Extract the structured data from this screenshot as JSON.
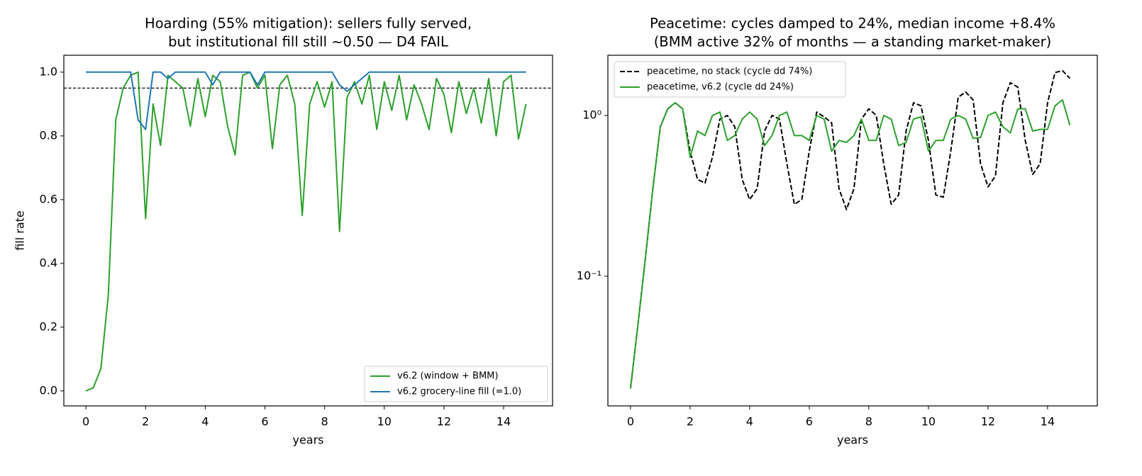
{
  "chart_data": [
    {
      "type": "line",
      "title": [
        "Hoarding (55% mitigation): sellers fully served,",
        "but institutional fill still ~0.50 — D4 FAIL"
      ],
      "xlabel": "years",
      "ylabel": "fill rate",
      "x": [
        0,
        0.25,
        0.5,
        0.75,
        1,
        1.25,
        1.5,
        1.75,
        2,
        2.25,
        2.5,
        2.75,
        3,
        3.25,
        3.5,
        3.75,
        4,
        4.25,
        4.5,
        4.75,
        5,
        5.25,
        5.5,
        5.75,
        6,
        6.25,
        6.5,
        6.75,
        7,
        7.25,
        7.5,
        7.75,
        8,
        8.25,
        8.5,
        8.75,
        9,
        9.25,
        9.5,
        9.75,
        10,
        10.25,
        10.5,
        10.75,
        11,
        11.25,
        11.5,
        11.75,
        12,
        12.25,
        12.5,
        12.75,
        13,
        13.25,
        13.5,
        13.75,
        14,
        14.25,
        14.5,
        14.75
      ],
      "series": [
        {
          "name": "v6.2 (window + BMM)",
          "color": "#2ca02c",
          "style": "solid",
          "values": [
            0,
            0.01,
            0.07,
            0.3,
            0.85,
            0.95,
            0.99,
            1.0,
            0.54,
            0.9,
            0.77,
            0.99,
            0.97,
            0.95,
            0.83,
            0.98,
            0.86,
            0.99,
            0.97,
            0.83,
            0.74,
            0.99,
            1.0,
            0.95,
            0.99,
            0.76,
            0.96,
            0.99,
            0.9,
            0.55,
            0.9,
            0.97,
            0.89,
            0.97,
            0.5,
            0.92,
            0.97,
            0.9,
            0.99,
            0.82,
            0.97,
            0.88,
            0.99,
            0.85,
            0.96,
            0.9,
            0.82,
            0.98,
            0.93,
            0.81,
            0.97,
            0.87,
            0.95,
            0.84,
            0.98,
            0.8,
            0.97,
            0.99,
            0.79,
            0.9
          ]
        },
        {
          "name": "v6.2 grocery-line fill (=1.0)",
          "color": "#1f77b4",
          "style": "solid",
          "values": [
            1,
            1,
            1,
            1,
            1,
            1,
            1,
            0.85,
            0.82,
            1,
            1,
            0.98,
            1,
            1,
            1,
            1,
            1,
            0.96,
            1,
            1,
            1,
            1,
            1,
            0.96,
            1,
            1,
            1,
            1,
            1,
            1,
            1,
            1,
            1,
            1,
            0.96,
            0.94,
            0.96,
            0.98,
            1,
            1,
            1,
            1,
            1,
            1,
            1,
            1,
            1,
            1,
            1,
            1,
            1,
            1,
            1,
            1,
            1,
            1,
            1,
            1,
            1,
            1
          ]
        }
      ],
      "reference_line": {
        "value": 0.95,
        "color": "#000000",
        "style": "dashed"
      },
      "xlim": [
        -0.74,
        15.64
      ],
      "xticks": [
        0,
        2,
        4,
        6,
        8,
        10,
        12,
        14
      ],
      "ylim": [
        -0.047,
        1.053
      ],
      "yticks": [
        {
          "value": 0,
          "label": "0.0"
        },
        0.2,
        0.4,
        0.6,
        0.8,
        {
          "value": 1,
          "label": "1.0"
        }
      ],
      "log_y": false,
      "legend": "lower right"
    },
    {
      "type": "line",
      "title": [
        "Peacetime: cycles damped to 24%, median income +8.4%",
        "(BMM active 32% of months — a standing market-maker)"
      ],
      "xlabel": "years",
      "x": [
        0,
        0.25,
        0.5,
        0.75,
        1,
        1.25,
        1.5,
        1.75,
        2,
        2.25,
        2.5,
        2.75,
        3,
        3.25,
        3.5,
        3.75,
        4,
        4.25,
        4.5,
        4.75,
        5,
        5.25,
        5.5,
        5.75,
        6,
        6.25,
        6.5,
        6.75,
        7,
        7.25,
        7.5,
        7.75,
        8,
        8.25,
        8.5,
        8.75,
        9,
        9.25,
        9.5,
        9.75,
        10,
        10.25,
        10.5,
        10.75,
        11,
        11.25,
        11.5,
        11.75,
        12,
        12.25,
        12.5,
        12.75,
        13,
        13.25,
        13.5,
        13.75,
        14,
        14.25,
        14.5,
        14.75
      ],
      "series": [
        {
          "name": "peacetime, no stack (cycle dd 74%)",
          "color": "#000000",
          "style": "dashed",
          "values": [
            0.02,
            0.05,
            0.13,
            0.35,
            0.85,
            1.1,
            1.2,
            1.1,
            0.6,
            0.4,
            0.38,
            0.55,
            0.95,
            1.0,
            0.85,
            0.4,
            0.3,
            0.35,
            0.8,
            1.0,
            0.95,
            0.5,
            0.28,
            0.3,
            0.6,
            1.05,
            0.98,
            0.9,
            0.35,
            0.26,
            0.35,
            0.95,
            1.1,
            1.0,
            0.5,
            0.28,
            0.32,
            0.8,
            1.2,
            1.15,
            0.7,
            0.32,
            0.31,
            0.6,
            1.3,
            1.4,
            1.25,
            0.5,
            0.36,
            0.42,
            1.2,
            1.6,
            1.5,
            0.7,
            0.43,
            0.5,
            1.2,
            1.85,
            1.9,
            1.7
          ]
        },
        {
          "name": "peacetime, v6.2 (cycle dd 24%)",
          "color": "#2ca02c",
          "style": "solid",
          "values": [
            0.02,
            0.05,
            0.13,
            0.35,
            0.85,
            1.1,
            1.2,
            1.1,
            0.55,
            0.8,
            0.75,
            1.0,
            1.05,
            0.7,
            0.75,
            0.95,
            1.05,
            0.95,
            0.65,
            0.75,
            1.0,
            1.05,
            0.75,
            0.75,
            0.7,
            1.0,
            0.95,
            0.6,
            0.7,
            0.68,
            0.75,
            0.95,
            0.7,
            0.7,
            1.0,
            0.95,
            0.65,
            0.68,
            0.95,
            0.98,
            0.6,
            0.7,
            0.7,
            0.95,
            1.0,
            0.95,
            0.72,
            0.73,
            1.0,
            1.05,
            0.85,
            0.78,
            1.1,
            1.1,
            0.8,
            0.82,
            0.82,
            1.15,
            1.25,
            0.87
          ]
        }
      ],
      "xlim": [
        -0.76,
        15.67
      ],
      "xticks": [
        0,
        2,
        4,
        6,
        8,
        10,
        12,
        14
      ],
      "ylim": [
        0.0156,
        2.37
      ],
      "yticks": [
        {
          "value": 0.1,
          "label": "10⁻¹"
        },
        {
          "value": 1,
          "label": "10⁰"
        }
      ],
      "log_y": true,
      "legend": "upper left"
    }
  ]
}
